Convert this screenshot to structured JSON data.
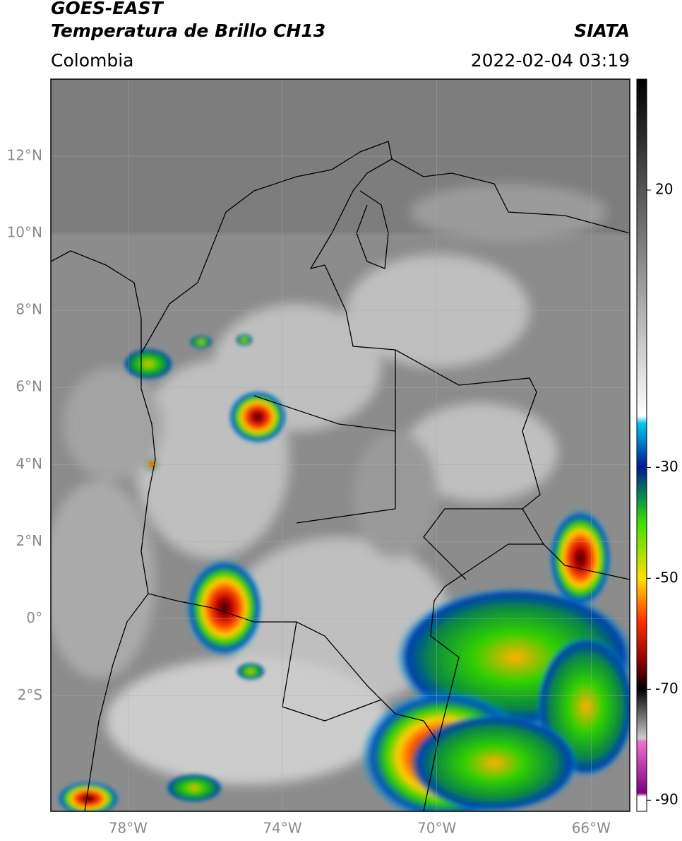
{
  "header": {
    "title": "GOES-EAST",
    "subtitle": "Temperatura de Brillo CH13",
    "source": "SIATA",
    "region": "Colombia",
    "timestamp": "2022-02-04 03:19"
  },
  "map": {
    "xlim": [
      -80,
      -65
    ],
    "ylim": [
      -5,
      14
    ],
    "xticks": [
      {
        "value": -78,
        "label": "78°W"
      },
      {
        "value": -74,
        "label": "74°W"
      },
      {
        "value": -70,
        "label": "70°W"
      },
      {
        "value": -66,
        "label": "66°W"
      }
    ],
    "yticks": [
      {
        "value": 12,
        "label": "12°N"
      },
      {
        "value": 10,
        "label": "10°N"
      },
      {
        "value": 8,
        "label": "8°N"
      },
      {
        "value": 6,
        "label": "6°N"
      },
      {
        "value": 4,
        "label": "4°N"
      },
      {
        "value": 2,
        "label": "2°N"
      },
      {
        "value": 0,
        "label": "0°"
      },
      {
        "value": -2,
        "label": "2°S"
      }
    ],
    "grid": true
  },
  "colorbar": {
    "lim": [
      40,
      -92
    ],
    "ticks": [
      20,
      -30,
      -50,
      -70,
      -90
    ]
  }
}
